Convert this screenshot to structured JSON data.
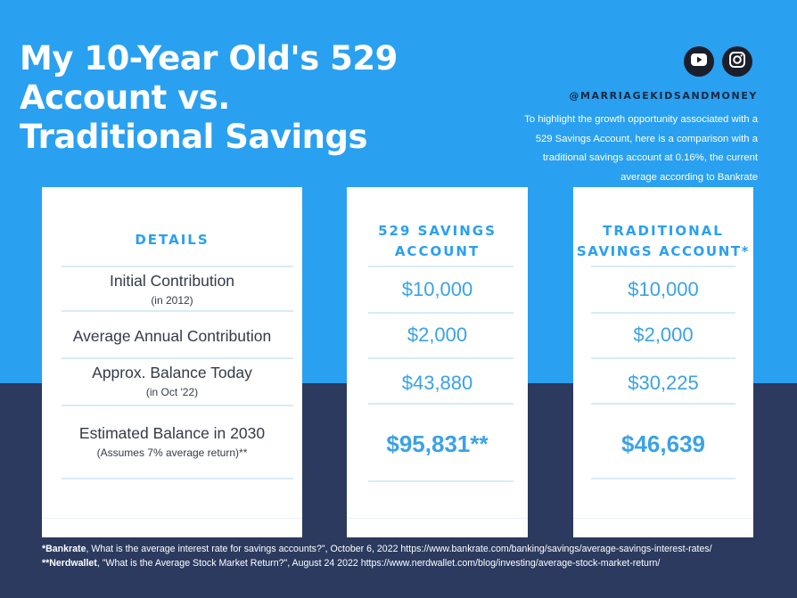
{
  "title": "My 10-Year Old's 529 Account vs. Traditional Savings",
  "social": {
    "youtube_icon": "youtube-icon",
    "instagram_icon": "instagram-icon"
  },
  "handle": "@MARRIAGEKIDSANDMONEY",
  "intro": "To highlight the growth opportunity associated with a 529 Savings Account, here is a comparison with a traditional savings account at 0.16%, the current average according to Bankrate",
  "colors": {
    "top_bg": "#2aa0f0",
    "bottom_bg": "#2b3a5e",
    "accent": "#2aa0f0",
    "value_text": "#3aa2e6"
  },
  "details": {
    "heading": "DETAILS",
    "rows": [
      {
        "label": "Initial Contribution",
        "sub": "(in 2012)"
      },
      {
        "label": "Average Annual Contribution",
        "sub": ""
      },
      {
        "label": "Approx. Balance  Today",
        "sub": "(in Oct '22)"
      },
      {
        "label": "Estimated Balance in 2030",
        "sub": "(Assumes 7% average return)**"
      }
    ]
  },
  "savings_529": {
    "heading_line1": "529 SAVINGS",
    "heading_line2": "ACCOUNT",
    "values": [
      "$10,000",
      "$2,000",
      "$43,880",
      "$95,831**"
    ]
  },
  "traditional": {
    "heading_line1": "TRADITIONAL",
    "heading_line2": "SAVINGS ACCOUNT*",
    "values": [
      "$10,000",
      "$2,000",
      "$30,225",
      "$46,639"
    ]
  },
  "footnotes": {
    "f1_source": "*Bankrate",
    "f1_text": ", What is the average interest rate for savings accounts?\", October 6, 2022  https://www.bankrate.com/banking/savings/average-savings-interest-rates/",
    "f2_source": "**Nerdwallet",
    "f2_text": ", \"What is the Average Stock Market Return?\", August 24 2022 https://www.nerdwallet.com/blog/investing/average-stock-market-return/"
  }
}
